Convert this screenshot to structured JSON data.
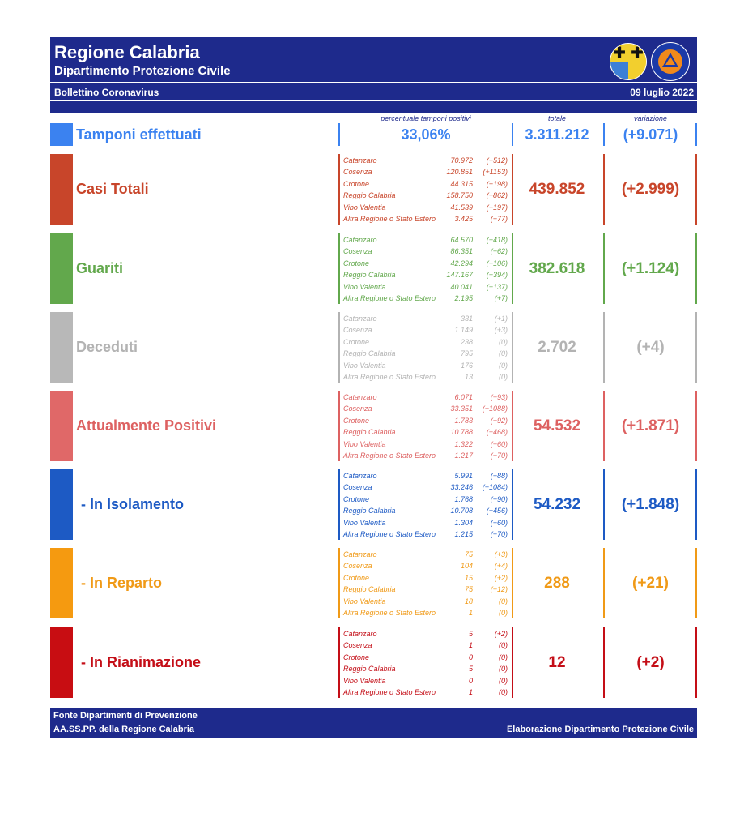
{
  "header": {
    "title": "Regione Calabria",
    "subtitle": "Dipartimento Protezione Civile",
    "bulletin": "Bollettino Coronavirus",
    "date": "09 luglio 2022",
    "logo_right_text": "PROTEZIONE CIVILE"
  },
  "columns": {
    "perc": "percentuale tamponi positivi",
    "total": "totale",
    "variation": "variazione"
  },
  "tamponi": {
    "label": "Tamponi effettuati",
    "perc": "33,06%",
    "total": "3.311.212",
    "variation": "(+9.071)",
    "color": "#3b82f0"
  },
  "sections": [
    {
      "label": "Casi Totali",
      "color": "#c8452a",
      "swatch": "#c8452a",
      "total": "439.852",
      "variation": "(+2.999)",
      "rows": [
        {
          "name": "Catanzaro",
          "value": "70.972",
          "delta": "(+512)"
        },
        {
          "name": "Cosenza",
          "value": "120.851",
          "delta": "(+1153)"
        },
        {
          "name": "Crotone",
          "value": "44.315",
          "delta": "(+198)"
        },
        {
          "name": "Reggio Calabria",
          "value": "158.750",
          "delta": "(+862)"
        },
        {
          "name": "Vibo Valentia",
          "value": "41.539",
          "delta": "(+197)"
        },
        {
          "name": "Altra Regione o Stato Estero",
          "value": "3.425",
          "delta": "(+77)"
        }
      ]
    },
    {
      "label": "Guariti",
      "color": "#62a84c",
      "swatch": "#62a84c",
      "total": "382.618",
      "variation": "(+1.124)",
      "rows": [
        {
          "name": "Catanzaro",
          "value": "64.570",
          "delta": "(+418)"
        },
        {
          "name": "Cosenza",
          "value": "86.351",
          "delta": "(+62)"
        },
        {
          "name": "Crotone",
          "value": "42.294",
          "delta": "(+106)"
        },
        {
          "name": "Reggio Calabria",
          "value": "147.167",
          "delta": "(+394)"
        },
        {
          "name": "Vibo Valentia",
          "value": "40.041",
          "delta": "(+137)"
        },
        {
          "name": "Altra Regione o Stato Estero",
          "value": "2.195",
          "delta": "(+7)"
        }
      ]
    },
    {
      "label": "Deceduti",
      "color": "#b3b3b3",
      "swatch": "#b8b8b8",
      "total": "2.702",
      "variation": "(+4)",
      "rows": [
        {
          "name": "Catanzaro",
          "value": "331",
          "delta": "(+1)"
        },
        {
          "name": "Cosenza",
          "value": "1.149",
          "delta": "(+3)"
        },
        {
          "name": "Crotone",
          "value": "238",
          "delta": "(0)"
        },
        {
          "name": "Reggio Calabria",
          "value": "795",
          "delta": "(0)"
        },
        {
          "name": "Vibo Valentia",
          "value": "176",
          "delta": "(0)"
        },
        {
          "name": "Altra Regione o Stato Estero",
          "value": "13",
          "delta": "(0)"
        }
      ]
    },
    {
      "label": "Attualmente Positivi",
      "color": "#dd6161",
      "swatch": "#e06868",
      "total": "54.532",
      "variation": "(+1.871)",
      "rows": [
        {
          "name": "Catanzaro",
          "value": "6.071",
          "delta": "(+93)"
        },
        {
          "name": "Cosenza",
          "value": "33.351",
          "delta": "(+1088)"
        },
        {
          "name": "Crotone",
          "value": "1.783",
          "delta": "(+92)"
        },
        {
          "name": "Reggio Calabria",
          "value": "10.788",
          "delta": "(+468)"
        },
        {
          "name": "Vibo Valentia",
          "value": "1.322",
          "delta": "(+60)"
        },
        {
          "name": "Altra Regione o Stato Estero",
          "value": "1.217",
          "delta": "(+70)"
        }
      ]
    },
    {
      "label": "- In Isolamento",
      "color": "#1d5ac4",
      "swatch": "#1d5ac4",
      "total": "54.232",
      "variation": "(+1.848)",
      "rows": [
        {
          "name": "Catanzaro",
          "value": "5.991",
          "delta": "(+88)"
        },
        {
          "name": "Cosenza",
          "value": "33.246",
          "delta": "(+1084)"
        },
        {
          "name": "Crotone",
          "value": "1.768",
          "delta": "(+90)"
        },
        {
          "name": "Reggio Calabria",
          "value": "10.708",
          "delta": "(+456)"
        },
        {
          "name": "Vibo Valentia",
          "value": "1.304",
          "delta": "(+60)"
        },
        {
          "name": "Altra Regione o Stato Estero",
          "value": "1.215",
          "delta": "(+70)"
        }
      ]
    },
    {
      "label": "- In Reparto",
      "color": "#f09a17",
      "swatch": "#f59a10",
      "total": "288",
      "variation": "(+21)",
      "rows": [
        {
          "name": "Catanzaro",
          "value": "75",
          "delta": "(+3)"
        },
        {
          "name": "Cosenza",
          "value": "104",
          "delta": "(+4)"
        },
        {
          "name": "Crotone",
          "value": "15",
          "delta": "(+2)"
        },
        {
          "name": "Reggio Calabria",
          "value": "75",
          "delta": "(+12)"
        },
        {
          "name": "Vibo Valentia",
          "value": "18",
          "delta": "(0)"
        },
        {
          "name": "Altra Regione o Stato Estero",
          "value": "1",
          "delta": "(0)"
        }
      ]
    },
    {
      "label": "- In Rianimazione",
      "color": "#c40e17",
      "swatch": "#c80d12",
      "total": "12",
      "variation": "(+2)",
      "rows": [
        {
          "name": "Catanzaro",
          "value": "5",
          "delta": "(+2)"
        },
        {
          "name": "Cosenza",
          "value": "1",
          "delta": "(0)"
        },
        {
          "name": "Crotone",
          "value": "0",
          "delta": "(0)"
        },
        {
          "name": "Reggio Calabria",
          "value": "5",
          "delta": "(0)"
        },
        {
          "name": "Vibo Valentia",
          "value": "0",
          "delta": "(0)"
        },
        {
          "name": "Altra Regione o Stato Estero",
          "value": "1",
          "delta": "(0)"
        }
      ]
    }
  ],
  "footer": {
    "source1": "Fonte Dipartimenti di Prevenzione",
    "source2": "AA.SS.PP.  della Regione Calabria",
    "elaboration": "Elaborazione Dipartimento Protezione Civile"
  }
}
